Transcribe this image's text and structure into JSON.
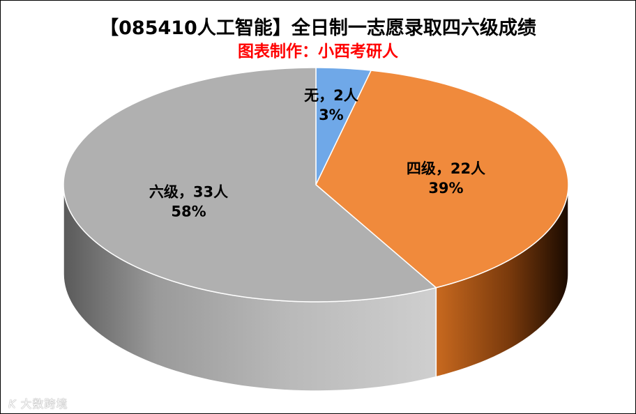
{
  "title": "【085410人工智能】全日制一志愿录取四六级成绩",
  "subtitle": "图表制作：小西考研人",
  "watermark": {
    "logo": "K",
    "text": "大数跨境"
  },
  "chart_data": {
    "type": "pie",
    "style": "3d",
    "categories": [
      "无",
      "四级",
      "六级"
    ],
    "values": [
      2,
      22,
      33
    ],
    "units": "人",
    "percent_labels": [
      "3%",
      "39%",
      "58%"
    ],
    "data_labels": [
      "无，2人",
      "四级，22人",
      "六级，33人"
    ],
    "colors": [
      "#6fa8e8",
      "#f08a3c",
      "#b0b0b0"
    ],
    "start_angle": "12 o'clock, clockwise",
    "legend": "none"
  }
}
